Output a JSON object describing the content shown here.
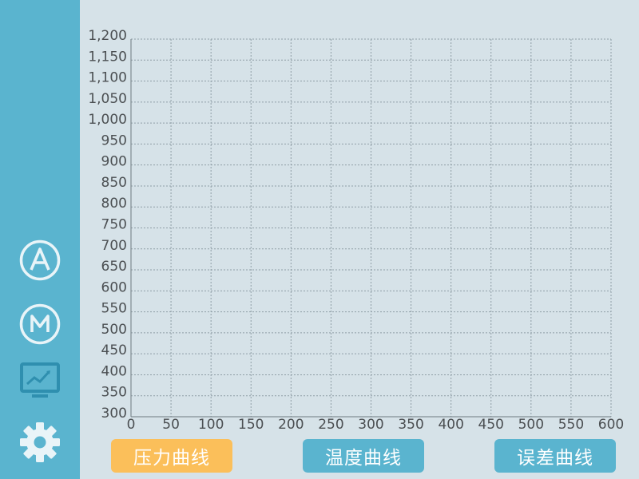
{
  "sidebar": {
    "icons": [
      {
        "name": "auto-mode-icon",
        "letter": "A"
      },
      {
        "name": "manual-mode-icon",
        "letter": "M"
      },
      {
        "name": "monitor-chart-icon"
      },
      {
        "name": "settings-gear-icon"
      }
    ],
    "icon_color": "#e9f4f8",
    "active_icon_color": "#2f8faf"
  },
  "buttons": [
    {
      "label": "压力曲线",
      "color": "#fbbf5a",
      "active": true
    },
    {
      "label": "温度曲线",
      "color": "#5ab4cf",
      "active": false
    },
    {
      "label": "误差曲线",
      "color": "#5ab4cf",
      "active": false
    }
  ],
  "chart_data": {
    "type": "line",
    "title": "",
    "xlabel": "",
    "ylabel": "",
    "xlim": [
      0,
      600
    ],
    "ylim": [
      300,
      1200
    ],
    "xticks": [
      "0",
      "50",
      "100",
      "150",
      "200",
      "250",
      "300",
      "350",
      "400",
      "450",
      "500",
      "550",
      "600"
    ],
    "yticks": [
      "300",
      "350",
      "400",
      "450",
      "500",
      "550",
      "600",
      "650",
      "700",
      "750",
      "800",
      "850",
      "900",
      "950",
      "1,000",
      "1,050",
      "1,100",
      "1,150",
      "1,200"
    ],
    "grid": true,
    "series": []
  }
}
